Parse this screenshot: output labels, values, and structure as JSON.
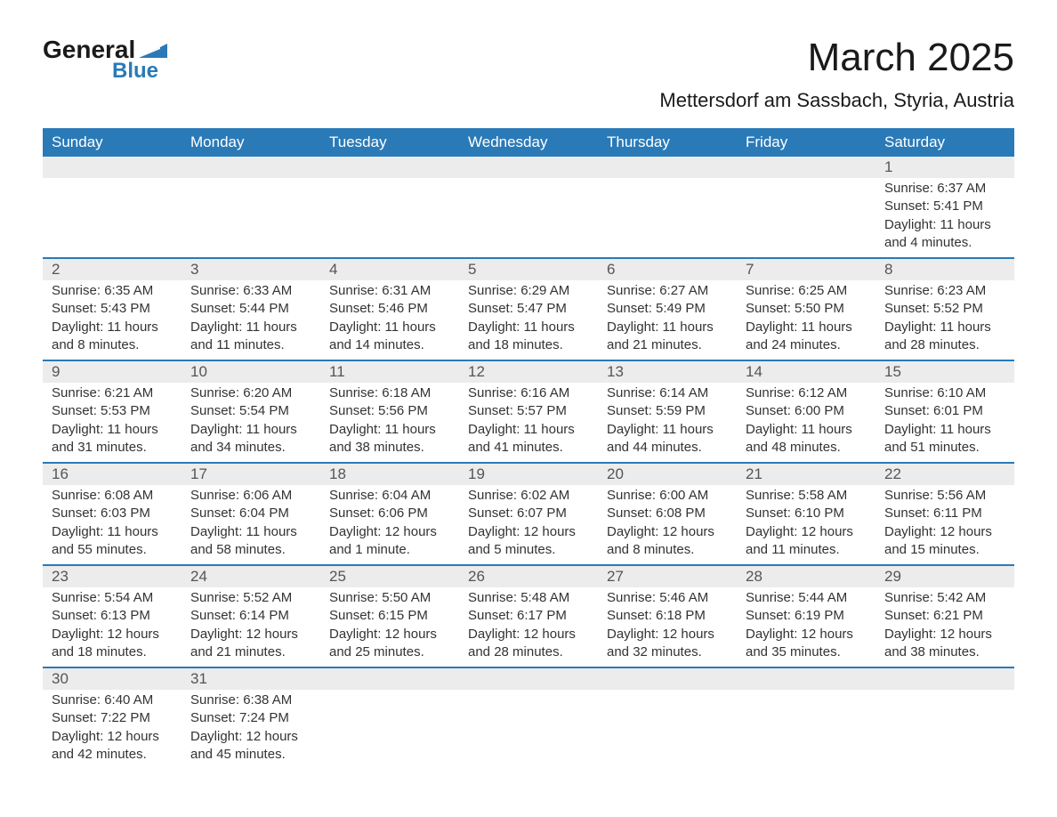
{
  "logo": {
    "word1": "General",
    "word2": "Blue"
  },
  "title": "March 2025",
  "location": "Mettersdorf am Sassbach, Styria, Austria",
  "colors": {
    "header_bg": "#2a7ab8",
    "header_text": "#ffffff",
    "daynum_bg": "#ececec",
    "row_divider": "#2a7ab8",
    "body_text": "#333333",
    "logo_accent": "#2a7ab8"
  },
  "typography": {
    "title_fontsize_pt": 33,
    "location_fontsize_pt": 17,
    "header_fontsize_pt": 13,
    "daynum_fontsize_pt": 13,
    "cell_fontsize_pt": 11
  },
  "calendar": {
    "days_of_week": [
      "Sunday",
      "Monday",
      "Tuesday",
      "Wednesday",
      "Thursday",
      "Friday",
      "Saturday"
    ],
    "weeks": [
      [
        null,
        null,
        null,
        null,
        null,
        null,
        {
          "day": "1",
          "sunrise": "Sunrise: 6:37 AM",
          "sunset": "Sunset: 5:41 PM",
          "daylight": "Daylight: 11 hours and 4 minutes."
        }
      ],
      [
        {
          "day": "2",
          "sunrise": "Sunrise: 6:35 AM",
          "sunset": "Sunset: 5:43 PM",
          "daylight": "Daylight: 11 hours and 8 minutes."
        },
        {
          "day": "3",
          "sunrise": "Sunrise: 6:33 AM",
          "sunset": "Sunset: 5:44 PM",
          "daylight": "Daylight: 11 hours and 11 minutes."
        },
        {
          "day": "4",
          "sunrise": "Sunrise: 6:31 AM",
          "sunset": "Sunset: 5:46 PM",
          "daylight": "Daylight: 11 hours and 14 minutes."
        },
        {
          "day": "5",
          "sunrise": "Sunrise: 6:29 AM",
          "sunset": "Sunset: 5:47 PM",
          "daylight": "Daylight: 11 hours and 18 minutes."
        },
        {
          "day": "6",
          "sunrise": "Sunrise: 6:27 AM",
          "sunset": "Sunset: 5:49 PM",
          "daylight": "Daylight: 11 hours and 21 minutes."
        },
        {
          "day": "7",
          "sunrise": "Sunrise: 6:25 AM",
          "sunset": "Sunset: 5:50 PM",
          "daylight": "Daylight: 11 hours and 24 minutes."
        },
        {
          "day": "8",
          "sunrise": "Sunrise: 6:23 AM",
          "sunset": "Sunset: 5:52 PM",
          "daylight": "Daylight: 11 hours and 28 minutes."
        }
      ],
      [
        {
          "day": "9",
          "sunrise": "Sunrise: 6:21 AM",
          "sunset": "Sunset: 5:53 PM",
          "daylight": "Daylight: 11 hours and 31 minutes."
        },
        {
          "day": "10",
          "sunrise": "Sunrise: 6:20 AM",
          "sunset": "Sunset: 5:54 PM",
          "daylight": "Daylight: 11 hours and 34 minutes."
        },
        {
          "day": "11",
          "sunrise": "Sunrise: 6:18 AM",
          "sunset": "Sunset: 5:56 PM",
          "daylight": "Daylight: 11 hours and 38 minutes."
        },
        {
          "day": "12",
          "sunrise": "Sunrise: 6:16 AM",
          "sunset": "Sunset: 5:57 PM",
          "daylight": "Daylight: 11 hours and 41 minutes."
        },
        {
          "day": "13",
          "sunrise": "Sunrise: 6:14 AM",
          "sunset": "Sunset: 5:59 PM",
          "daylight": "Daylight: 11 hours and 44 minutes."
        },
        {
          "day": "14",
          "sunrise": "Sunrise: 6:12 AM",
          "sunset": "Sunset: 6:00 PM",
          "daylight": "Daylight: 11 hours and 48 minutes."
        },
        {
          "day": "15",
          "sunrise": "Sunrise: 6:10 AM",
          "sunset": "Sunset: 6:01 PM",
          "daylight": "Daylight: 11 hours and 51 minutes."
        }
      ],
      [
        {
          "day": "16",
          "sunrise": "Sunrise: 6:08 AM",
          "sunset": "Sunset: 6:03 PM",
          "daylight": "Daylight: 11 hours and 55 minutes."
        },
        {
          "day": "17",
          "sunrise": "Sunrise: 6:06 AM",
          "sunset": "Sunset: 6:04 PM",
          "daylight": "Daylight: 11 hours and 58 minutes."
        },
        {
          "day": "18",
          "sunrise": "Sunrise: 6:04 AM",
          "sunset": "Sunset: 6:06 PM",
          "daylight": "Daylight: 12 hours and 1 minute."
        },
        {
          "day": "19",
          "sunrise": "Sunrise: 6:02 AM",
          "sunset": "Sunset: 6:07 PM",
          "daylight": "Daylight: 12 hours and 5 minutes."
        },
        {
          "day": "20",
          "sunrise": "Sunrise: 6:00 AM",
          "sunset": "Sunset: 6:08 PM",
          "daylight": "Daylight: 12 hours and 8 minutes."
        },
        {
          "day": "21",
          "sunrise": "Sunrise: 5:58 AM",
          "sunset": "Sunset: 6:10 PM",
          "daylight": "Daylight: 12 hours and 11 minutes."
        },
        {
          "day": "22",
          "sunrise": "Sunrise: 5:56 AM",
          "sunset": "Sunset: 6:11 PM",
          "daylight": "Daylight: 12 hours and 15 minutes."
        }
      ],
      [
        {
          "day": "23",
          "sunrise": "Sunrise: 5:54 AM",
          "sunset": "Sunset: 6:13 PM",
          "daylight": "Daylight: 12 hours and 18 minutes."
        },
        {
          "day": "24",
          "sunrise": "Sunrise: 5:52 AM",
          "sunset": "Sunset: 6:14 PM",
          "daylight": "Daylight: 12 hours and 21 minutes."
        },
        {
          "day": "25",
          "sunrise": "Sunrise: 5:50 AM",
          "sunset": "Sunset: 6:15 PM",
          "daylight": "Daylight: 12 hours and 25 minutes."
        },
        {
          "day": "26",
          "sunrise": "Sunrise: 5:48 AM",
          "sunset": "Sunset: 6:17 PM",
          "daylight": "Daylight: 12 hours and 28 minutes."
        },
        {
          "day": "27",
          "sunrise": "Sunrise: 5:46 AM",
          "sunset": "Sunset: 6:18 PM",
          "daylight": "Daylight: 12 hours and 32 minutes."
        },
        {
          "day": "28",
          "sunrise": "Sunrise: 5:44 AM",
          "sunset": "Sunset: 6:19 PM",
          "daylight": "Daylight: 12 hours and 35 minutes."
        },
        {
          "day": "29",
          "sunrise": "Sunrise: 5:42 AM",
          "sunset": "Sunset: 6:21 PM",
          "daylight": "Daylight: 12 hours and 38 minutes."
        }
      ],
      [
        {
          "day": "30",
          "sunrise": "Sunrise: 6:40 AM",
          "sunset": "Sunset: 7:22 PM",
          "daylight": "Daylight: 12 hours and 42 minutes."
        },
        {
          "day": "31",
          "sunrise": "Sunrise: 6:38 AM",
          "sunset": "Sunset: 7:24 PM",
          "daylight": "Daylight: 12 hours and 45 minutes."
        },
        null,
        null,
        null,
        null,
        null
      ]
    ]
  }
}
